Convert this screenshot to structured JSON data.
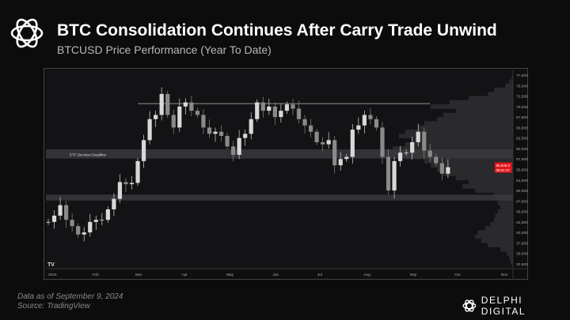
{
  "header": {
    "title": "BTC Consolidation Continues After Carry Trade Unwind",
    "subtitle": "BTCUSD Price Performance (Year To Date)"
  },
  "footer": {
    "data_note": "Data as of September  9, 2024",
    "source": "Source:  TradingView",
    "brand": "DELPHI DIGITAL"
  },
  "chart_data": {
    "type": "candlestick",
    "title": "BTCUSD Price Performance (Year To Date)",
    "x_tick_labels": [
      "2024",
      "Feb",
      "Mar",
      "Apr",
      "May",
      "Jun",
      "Jul",
      "Aug",
      "Sep",
      "Oct",
      "Nov"
    ],
    "y_tick_labels": [
      "77,500.0",
      "75,000.0",
      "72,500.0",
      "70,000.0",
      "67,500.0",
      "65,000.0",
      "62,500.0",
      "60,000.0",
      "57,500.0",
      "55,000.0",
      "52,500.0",
      "50,000.0",
      "47,500.0",
      "45,000.0",
      "42,500.0",
      "40,000.0",
      "37,500.0",
      "35,000.0",
      "32,500.0"
    ],
    "ylim": [
      32500,
      77500
    ],
    "xlim_days": [
      0,
      310
    ],
    "day_step": 4,
    "closes": [
      42500,
      44000,
      46500,
      43000,
      41500,
      39500,
      40000,
      42500,
      43000,
      43000,
      45500,
      48000,
      52000,
      51500,
      51800,
      57000,
      62000,
      67000,
      68000,
      73000,
      68000,
      65000,
      70000,
      71000,
      69000,
      68000,
      65000,
      63500,
      64000,
      63000,
      60500,
      58500,
      62500,
      63500,
      67000,
      71000,
      69000,
      70000,
      67500,
      69000,
      70500,
      69500,
      67000,
      65500,
      64000,
      61500,
      61000,
      62000,
      56000,
      57500,
      58000,
      64500,
      65500,
      68000,
      67000,
      65000,
      58000,
      50000,
      57000,
      59000,
      59000,
      61500,
      64000,
      59500,
      58000,
      56500,
      54000,
      55548
    ],
    "current_price": "55,548.0",
    "countdown": "08:01:37",
    "annotations": [
      {
        "label": "ETF Decision Deadline",
        "type": "band",
        "y_range": [
          57600,
          59800
        ]
      },
      {
        "type": "band",
        "y_range": [
          47600,
          49000
        ]
      },
      {
        "type": "hline",
        "y": 70700
      }
    ],
    "volume_profile": {
      "price_levels_start": 32500,
      "price_step": 1000,
      "relative_volume": [
        0.02,
        0.03,
        0.05,
        0.1,
        0.2,
        0.25,
        0.3,
        0.28,
        0.22,
        0.18,
        0.15,
        0.14,
        0.12,
        0.1,
        0.12,
        0.13,
        0.15,
        0.3,
        0.4,
        0.35,
        0.45,
        0.55,
        0.6,
        0.65,
        0.7,
        0.85,
        1.0,
        0.95,
        0.85,
        0.8,
        0.9,
        0.85,
        0.75,
        0.7,
        0.6,
        0.55,
        0.45,
        0.65,
        0.5,
        0.35,
        0.2,
        0.15,
        0.06,
        0.03,
        0.01
      ]
    },
    "watermark": "TV",
    "colors": {
      "up": "#d8d8d8",
      "down": "#8a8a8a",
      "price_tag": "#e0141b"
    }
  }
}
